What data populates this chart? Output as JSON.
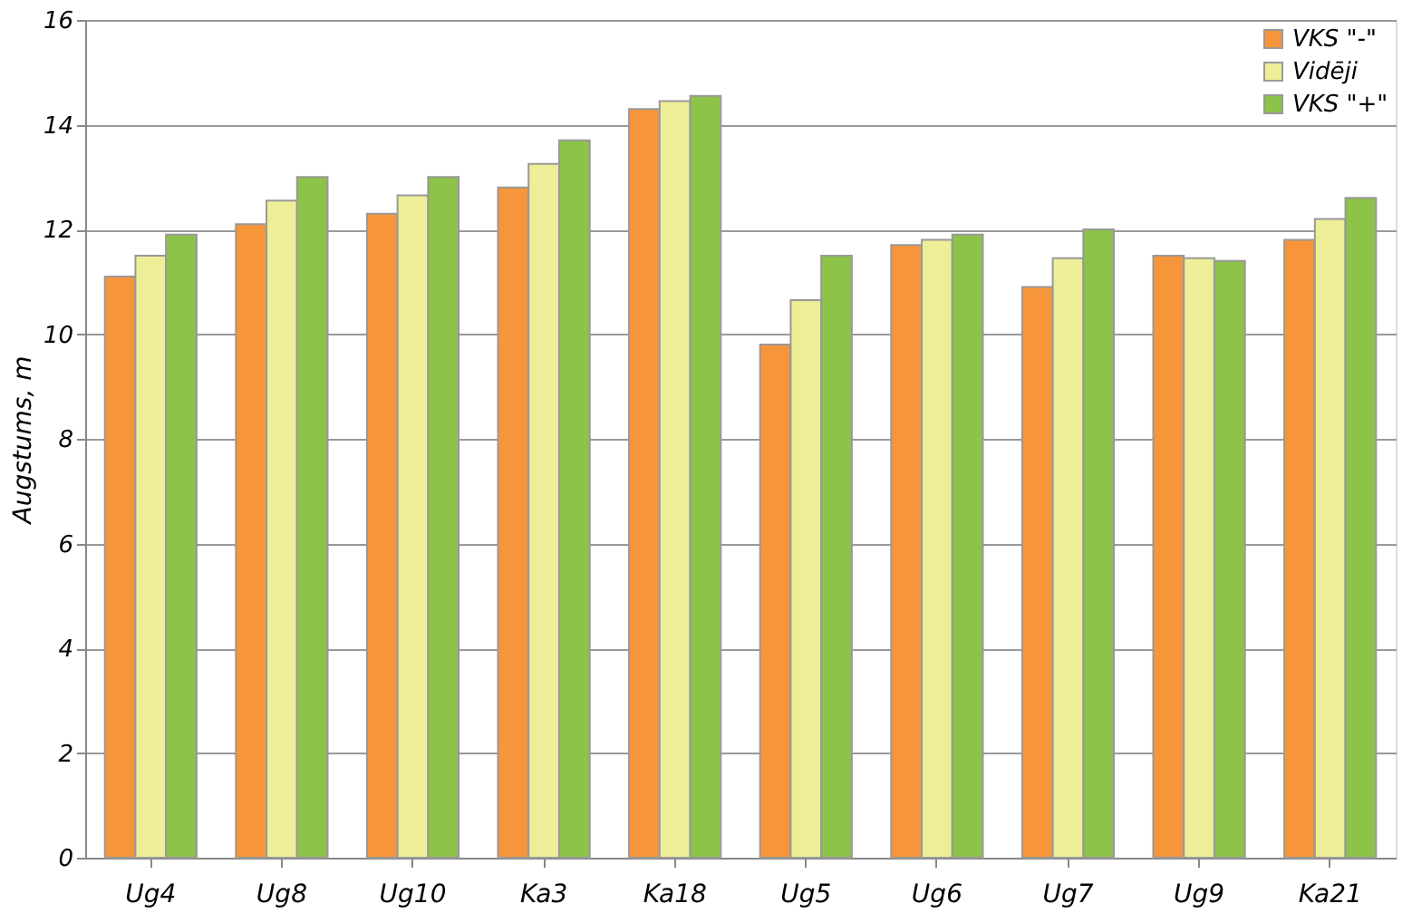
{
  "chart_data": {
    "type": "bar",
    "ylabel": "Augstums, m",
    "categories": [
      "Ug4",
      "Ug8",
      "Ug10",
      "Ka3",
      "Ka18",
      "Ug5",
      "Ug6",
      "Ug7",
      "Ug9",
      "Ka21"
    ],
    "series": [
      {
        "name": "VKS \"-\"",
        "color": "#f7953a",
        "values": [
          11.1,
          12.1,
          12.3,
          12.8,
          14.3,
          9.8,
          11.7,
          10.9,
          11.5,
          11.8
        ]
      },
      {
        "name": "Vidēji",
        "color": "#eeee99",
        "values": [
          11.5,
          12.55,
          12.65,
          13.25,
          14.45,
          10.65,
          11.8,
          11.45,
          11.45,
          12.2
        ]
      },
      {
        "name": "VKS \"+\"",
        "color": "#8cc348",
        "values": [
          11.9,
          13.0,
          13.0,
          13.7,
          14.55,
          11.5,
          11.9,
          12.0,
          11.4,
          12.6
        ]
      }
    ],
    "ylim": [
      0,
      16
    ],
    "yticks": [
      0,
      2,
      4,
      6,
      8,
      10,
      12,
      14,
      16
    ],
    "grid": "y",
    "legend": "top right"
  }
}
